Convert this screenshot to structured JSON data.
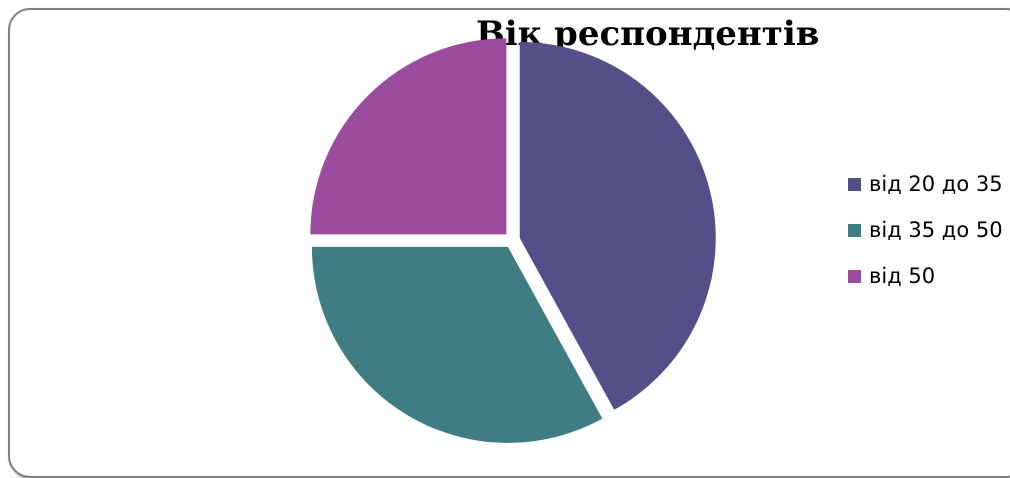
{
  "chart_data": {
    "type": "pie",
    "title": "Вік респондентів",
    "categories": [
      "від 20 до 35",
      "від 35 до 50",
      "від 50"
    ],
    "values": [
      42,
      33,
      25
    ],
    "value_unit": "percent of respondents (estimated)",
    "exploded": true,
    "start_angle_deg": 0,
    "direction": "clockwise",
    "legend_position": "right",
    "colors": [
      "#535089",
      "#407d82",
      "#9b4c9f"
    ]
  }
}
